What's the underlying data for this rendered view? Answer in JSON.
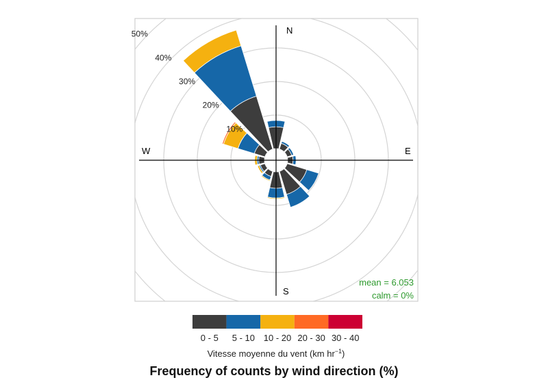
{
  "chart_data": {
    "type": "windrose",
    "title": "Frequency of counts by wind direction (%)",
    "directions": [
      0,
      30,
      60,
      90,
      120,
      150,
      180,
      210,
      240,
      270,
      300,
      330
    ],
    "compass_labels": {
      "N": "N",
      "E": "E",
      "S": "S",
      "W": "W"
    },
    "radial_ticks": [
      10,
      20,
      30,
      40,
      50
    ],
    "radial_tick_labels": [
      "10%",
      "20%",
      "30%",
      "40%",
      "50%"
    ],
    "series": [
      {
        "name": "0 - 5",
        "color": "#3d3d3d",
        "values": [
          6.5,
          1.8,
          1.4,
          1.6,
          6.1,
          7.2,
          4.9,
          1.6,
          1.4,
          1.7,
          3.3,
          16.5
        ]
      },
      {
        "name": "5 - 10",
        "color": "#1667a8",
        "values": [
          1.9,
          0.6,
          0.6,
          0.9,
          3.7,
          4.0,
          2.9,
          1.1,
          0.4,
          0.5,
          5.1,
          15.7
        ]
      },
      {
        "name": "10 - 20",
        "color": "#f5b110",
        "values": [
          0,
          0,
          0,
          0,
          0,
          0,
          0.3,
          0.3,
          0.5,
          0.7,
          4.5,
          4.9
        ]
      },
      {
        "name": "20 - 30",
        "color": "#ff6a25",
        "values": [
          0,
          0,
          0,
          0,
          0,
          0,
          0,
          0,
          0,
          0,
          0.4,
          0.15
        ]
      },
      {
        "name": "30 - 40",
        "color": "#cc0033",
        "values": [
          0,
          0,
          0,
          0,
          0,
          0,
          0,
          0,
          0,
          0,
          0,
          0
        ]
      }
    ],
    "legend_title": "Vitesse moyenne du vent (km hr",
    "legend_title_sup": "−1",
    "legend_title_close": ")",
    "legend_position": "bottom",
    "annotations": {
      "mean": "mean = 6.053",
      "calm": "calm = 0%",
      "color": "#2e9a2e"
    },
    "rlim": [
      0,
      60
    ]
  }
}
